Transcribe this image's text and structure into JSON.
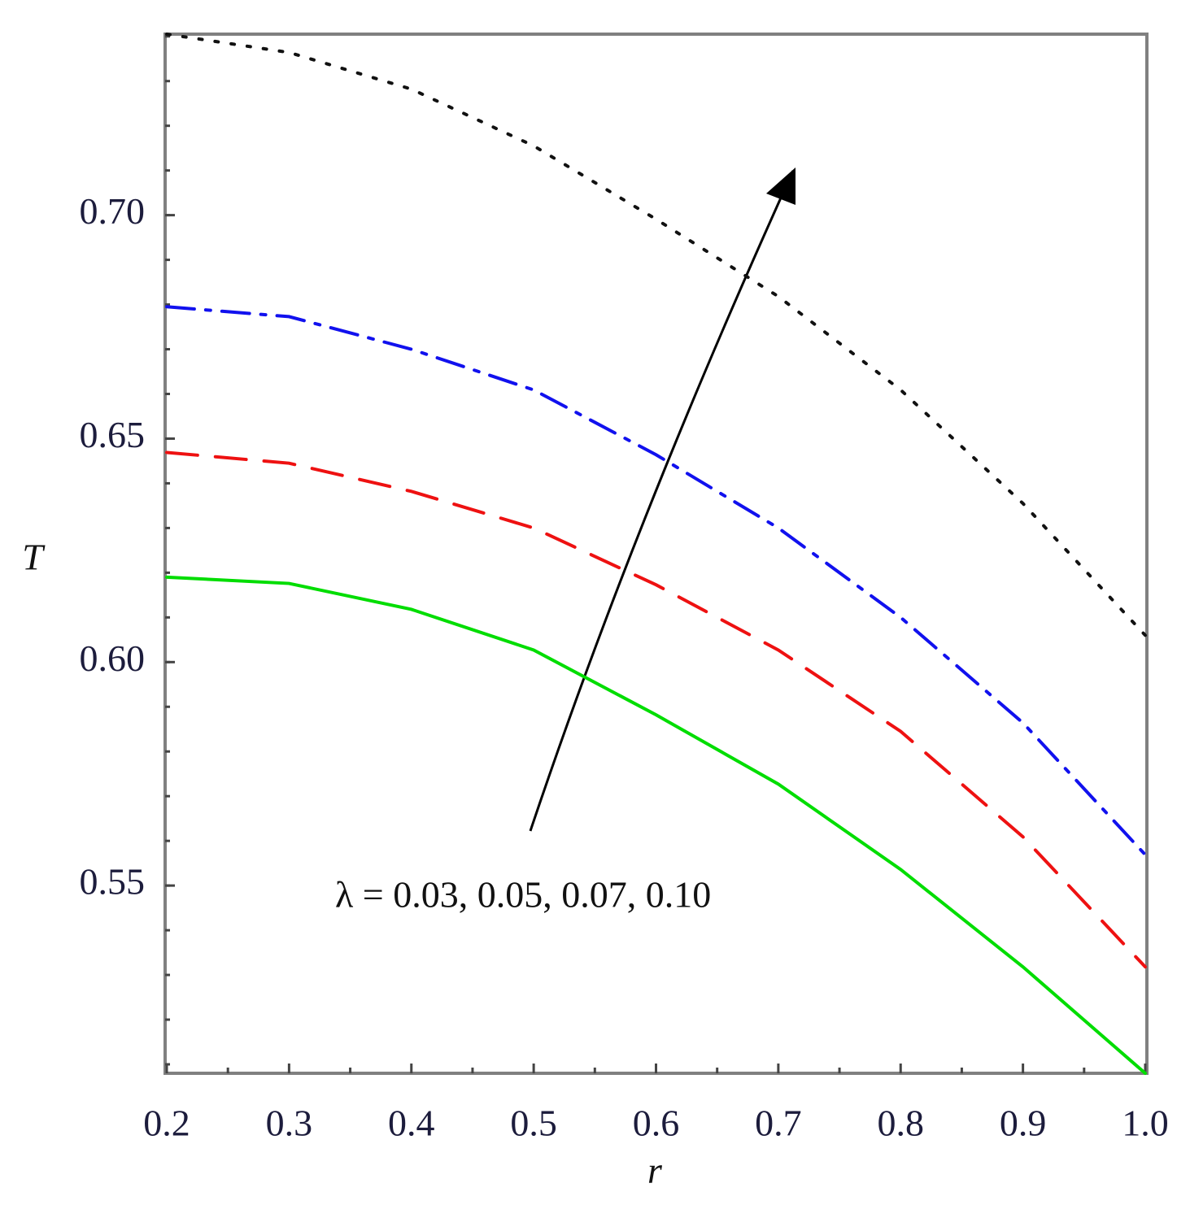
{
  "chart_data": {
    "type": "line",
    "xlabel": "r",
    "ylabel": "T",
    "annotation": "λ = 0.03, 0.05, 0.07, 0.10",
    "x": [
      0.2,
      0.3,
      0.4,
      0.5,
      0.6,
      0.7,
      0.8,
      0.9,
      1.0
    ],
    "series": [
      {
        "color": "#00dd00",
        "dash": "solid",
        "values": [
          0.619,
          0.6176,
          0.6118,
          0.6027,
          0.5882,
          0.5727,
          0.5536,
          0.5318,
          0.508
        ]
      },
      {
        "color": "#ee1111",
        "dash": "dash",
        "values": [
          0.6469,
          0.6445,
          0.6382,
          0.63,
          0.6173,
          0.6027,
          0.5845,
          0.5609,
          0.5318
        ]
      },
      {
        "color": "#1111ee",
        "dash": "dashdot",
        "values": [
          0.6795,
          0.6773,
          0.67,
          0.6609,
          0.6464,
          0.63,
          0.61,
          0.5864,
          0.5569
        ]
      },
      {
        "color": "#111111",
        "dash": "dot",
        "values": [
          0.7405,
          0.7364,
          0.7282,
          0.7155,
          0.6991,
          0.6818,
          0.6609,
          0.6355,
          0.606
        ]
      }
    ],
    "xlim": [
      0.2,
      1.0
    ],
    "ylim": [
      0.508,
      0.7405
    ],
    "xticks": [
      0.2,
      0.3,
      0.4,
      0.5,
      0.6,
      0.7,
      0.8,
      0.9,
      {
        "value": 1.0,
        "label": "1.0"
      }
    ],
    "yticks": [
      0.55,
      {
        "value": 0.6,
        "label": "0.60"
      },
      0.65,
      {
        "value": 0.7,
        "label": "0.70"
      }
    ]
  }
}
